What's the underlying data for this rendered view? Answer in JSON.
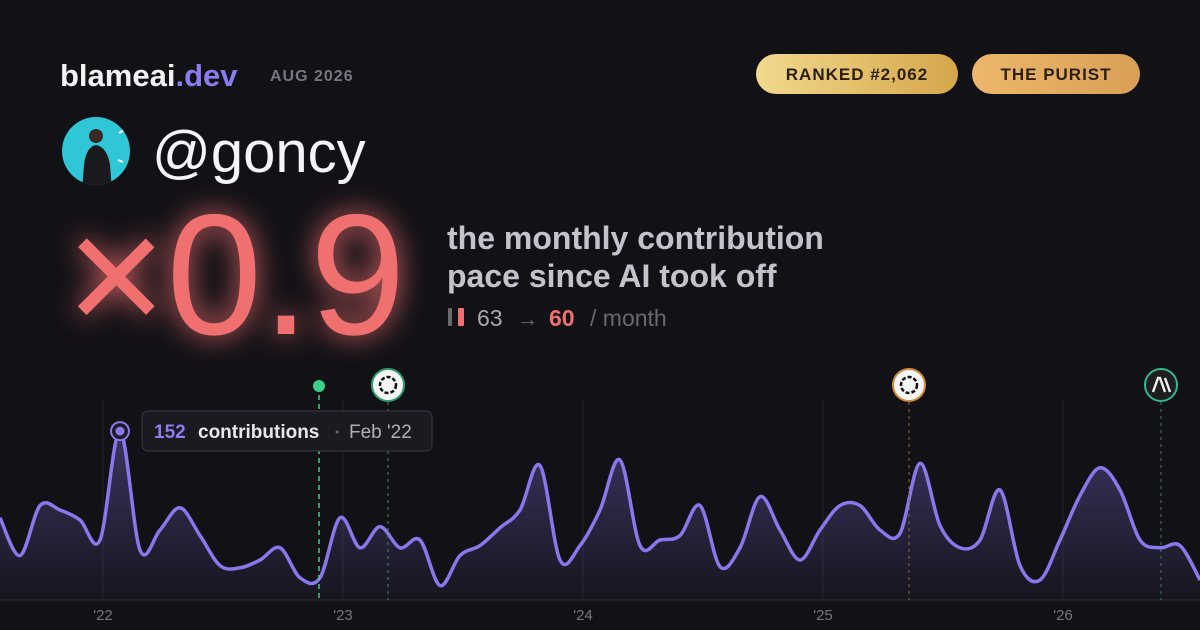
{
  "header": {
    "brand": "blameai",
    "brand_suffix": ".dev",
    "date": "AUG 2026",
    "badges": [
      "RANKED #2,062",
      "THE PURIST"
    ]
  },
  "profile": {
    "handle": "@goncy"
  },
  "stat": {
    "multiplier": "×0.9",
    "caption": [
      "the monthly contribution",
      "pace since AI took off"
    ],
    "before": 63,
    "arrow": "→",
    "after": 60,
    "unit": "/ month"
  },
  "tooltip": {
    "value": 152,
    "label": "contributions",
    "date": "Feb '22"
  },
  "chart_data": {
    "type": "area",
    "color": "#8878ec",
    "categories": [
      null,
      null,
      null,
      null,
      null,
      "'22",
      null,
      null,
      null,
      null,
      null,
      null,
      null,
      null,
      null,
      null,
      null,
      "'23",
      null,
      null,
      null,
      null,
      null,
      null,
      null,
      null,
      null,
      null,
      null,
      "'24",
      null,
      null,
      null,
      null,
      null,
      null,
      null,
      null,
      null,
      null,
      null,
      "'25",
      null,
      null,
      null,
      null,
      null,
      null,
      null,
      null,
      null,
      null,
      null,
      "'26",
      null,
      null,
      null,
      null,
      null,
      null,
      null
    ],
    "values": [
      74,
      40,
      85,
      81,
      72,
      54,
      152,
      45,
      63,
      83,
      58,
      31,
      29,
      36,
      47,
      20,
      20,
      74,
      47,
      66,
      47,
      54,
      13,
      40,
      49,
      65,
      81,
      121,
      36,
      49,
      81,
      126,
      49,
      54,
      58,
      85,
      30,
      47,
      93,
      63,
      36,
      63,
      85,
      85,
      63,
      60,
      123,
      67,
      47,
      54,
      99,
      31,
      18,
      54,
      94,
      119,
      99,
      54,
      47,
      49,
      18
    ],
    "ylim": [
      0,
      180
    ]
  }
}
